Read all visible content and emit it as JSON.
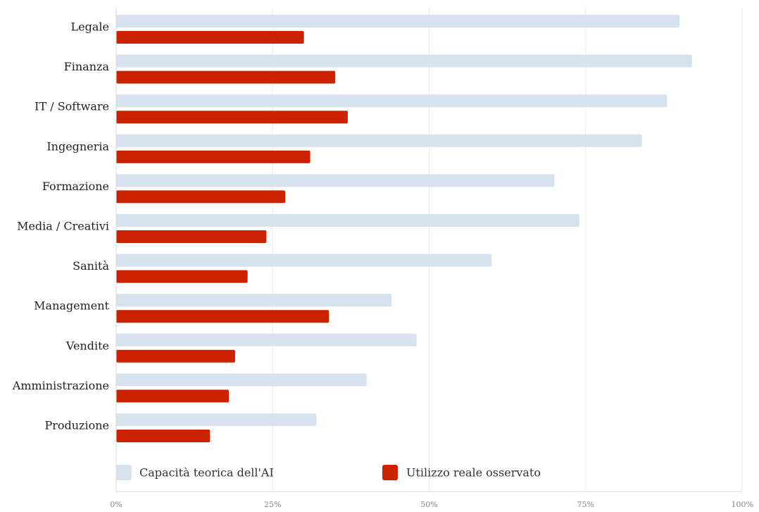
{
  "chart_data": {
    "type": "bar",
    "orientation": "horizontal",
    "categories": [
      "Legale",
      "Finanza",
      "IT / Software",
      "Ingegneria",
      "Formazione",
      "Media / Creativi",
      "Sanità",
      "Management",
      "Vendite",
      "Amministrazione",
      "Produzione"
    ],
    "series": [
      {
        "name": "Capacità teorica dell'AI",
        "color": "#d6e2ee",
        "values": [
          90,
          92,
          88,
          84,
          70,
          74,
          60,
          44,
          48,
          40,
          32
        ]
      },
      {
        "name": "Utilizzo reale osservato",
        "color": "#cc2200",
        "values": [
          30,
          35,
          37,
          31,
          27,
          24,
          21,
          34,
          19,
          18,
          15
        ]
      }
    ],
    "x_ticks": [
      "0%",
      "25%",
      "50%",
      "75%",
      "100%"
    ],
    "xlim": [
      0,
      100
    ],
    "grid": true,
    "legend": "bottom-left inside plot",
    "title": "",
    "xlabel": "",
    "ylabel": ""
  }
}
